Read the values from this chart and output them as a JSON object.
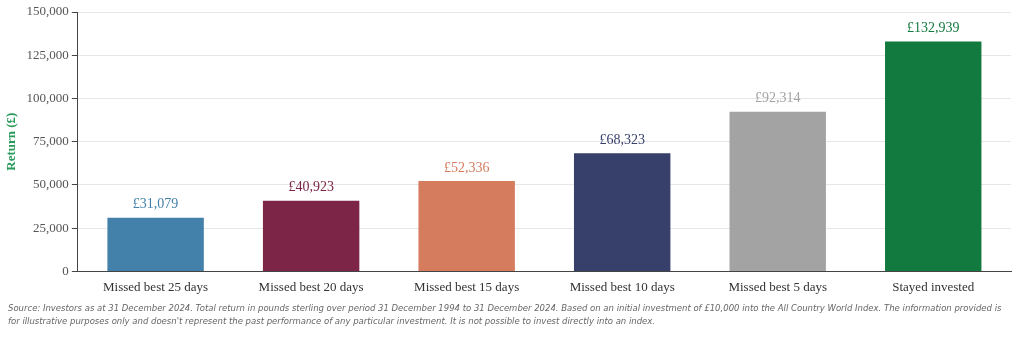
{
  "chart_data": {
    "type": "bar",
    "ylabel": "Return (£)",
    "categories": [
      "Missed best 25 days",
      "Missed best 20 days",
      "Missed best 15 days",
      "Missed best 10 days",
      "Missed best 5 days",
      "Stayed invested"
    ],
    "values": [
      31079,
      40923,
      52336,
      68323,
      92314,
      132939
    ],
    "colors": [
      "#4381ab",
      "#7d2547",
      "#d57c5e",
      "#373f6b",
      "#a3a3a3",
      "#127a3e"
    ],
    "value_labels": [
      "£31,079",
      "£40,923",
      "£52,336",
      "£68,323",
      "£92,314",
      "£132,939"
    ],
    "ylim": [
      0,
      150000
    ],
    "yticks": [
      {
        "value": 0,
        "label": "0"
      },
      {
        "value": 25000,
        "label": "25,000"
      },
      {
        "value": 50000,
        "label": "50,000"
      },
      {
        "value": 75000,
        "label": "75,000"
      },
      {
        "value": 100000,
        "label": "100,000"
      },
      {
        "value": 125000,
        "label": "125,000"
      },
      {
        "value": 150000,
        "label": "150,000"
      }
    ],
    "grid": "y",
    "legend": false,
    "annotations": [
      "Source: Investors as at 31 December 2024. Total return in pounds sterling over period 31 December 1994 to 31 December 2024. Based on an initial investment of £10,000 into the All Country World Index. The information provided is for illustrative purposes only and doesn't represent the past performance of any particular investment. It is not possible to invest directly into an index."
    ]
  }
}
